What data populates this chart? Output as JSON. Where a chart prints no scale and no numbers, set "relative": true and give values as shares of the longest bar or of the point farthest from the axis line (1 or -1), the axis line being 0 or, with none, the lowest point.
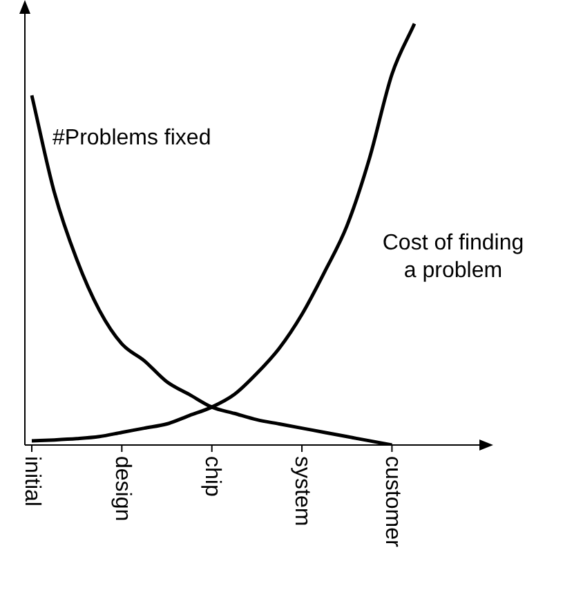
{
  "chart_data": {
    "type": "line",
    "relative": true,
    "categories": [
      "initial",
      null,
      null,
      null,
      "design",
      null,
      null,
      null,
      "chip",
      null,
      null,
      null,
      "system",
      null,
      null,
      null,
      "customer",
      null
    ],
    "series": [
      {
        "color": "#000000",
        "values": [
          0.83,
          0.6,
          0.44,
          0.32,
          0.24,
          0.2,
          0.15,
          0.12,
          0.09,
          0.075,
          0.06,
          0.05,
          0.04,
          0.03,
          0.02,
          0.01,
          0,
          null
        ]
      },
      {
        "color": "#000000",
        "values": [
          0.01,
          0.012,
          0.015,
          0.02,
          0.03,
          0.04,
          0.05,
          0.07,
          0.09,
          0.12,
          0.17,
          0.23,
          0.31,
          0.41,
          0.52,
          0.68,
          0.88,
          1
        ]
      }
    ],
    "annotations": [
      "#Problems fixed",
      "Cost of finding\na problem"
    ]
  }
}
